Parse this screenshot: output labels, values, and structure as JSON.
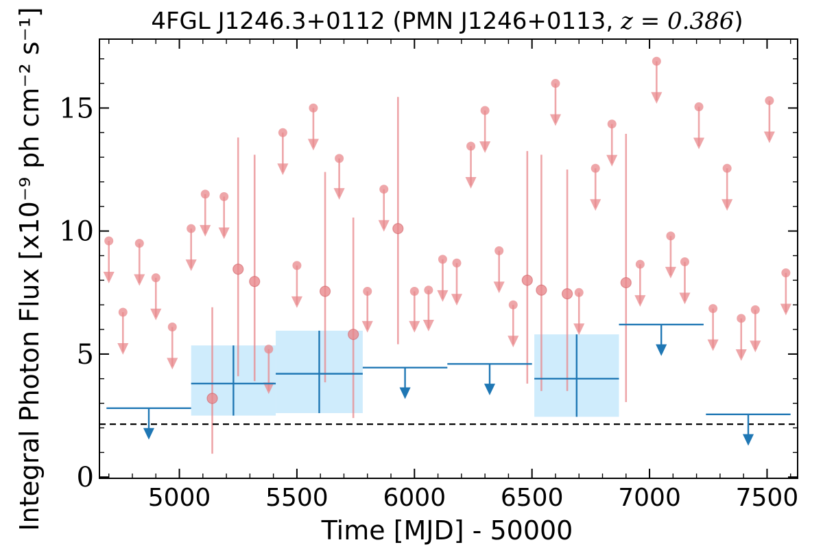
{
  "chart_data": {
    "type": "scatter",
    "title": "4FGL J1246.3+0112 (PMN J1246+0113, z = 0.386)",
    "title_parts": {
      "main": "4FGL J1246.3+0112 (PMN J1246+0113, ",
      "math": "z = 0.386",
      "close": ")"
    },
    "xlabel": "Time [MJD] - 50000",
    "ylabel": "Integral Photon Flux [x10⁻⁹ ph cm⁻² s⁻¹]",
    "xlim": [
      4660,
      7630
    ],
    "ylim": [
      -0.05,
      17.8
    ],
    "xticks": [
      5000,
      5500,
      6000,
      6500,
      7000,
      7500
    ],
    "xtick_labels": [
      "5000",
      "5500",
      "6000",
      "6500",
      "7000",
      "7500"
    ],
    "yticks": [
      0,
      5,
      10,
      15
    ],
    "ytick_labels": [
      "0",
      "5",
      "10",
      "15"
    ],
    "grid": false,
    "legend": "none",
    "reference_line": {
      "y": 2.15,
      "style": "dashed",
      "color": "#000000"
    },
    "colors": {
      "fine": "#e8888c",
      "coarse": "#1f77b4",
      "band": "#bfe6fb"
    },
    "series": [
      {
        "kind": "fine-upper-limits",
        "points": [
          {
            "x": 4700,
            "y": 9.6,
            "y_end": 8.0
          },
          {
            "x": 4760,
            "y": 6.7,
            "y_end": 5.1
          },
          {
            "x": 4830,
            "y": 9.5,
            "y_end": 7.9
          },
          {
            "x": 4900,
            "y": 8.1,
            "y_end": 6.5
          },
          {
            "x": 4970,
            "y": 6.1,
            "y_end": 4.5
          },
          {
            "x": 5050,
            "y": 10.1,
            "y_end": 8.5
          },
          {
            "x": 5110,
            "y": 11.5,
            "y_end": 9.9
          },
          {
            "x": 5190,
            "y": 11.4,
            "y_end": 9.8
          },
          {
            "x": 5380,
            "y": 5.2,
            "y_end": 3.5
          },
          {
            "x": 5440,
            "y": 14.0,
            "y_end": 12.4
          },
          {
            "x": 5500,
            "y": 8.6,
            "y_end": 7.0
          },
          {
            "x": 5570,
            "y": 15.0,
            "y_end": 13.4
          },
          {
            "x": 5680,
            "y": 12.95,
            "y_end": 11.4
          },
          {
            "x": 5800,
            "y": 7.55,
            "y_end": 6.0
          },
          {
            "x": 5870,
            "y": 11.7,
            "y_end": 10.1
          },
          {
            "x": 6000,
            "y": 7.55,
            "y_end": 6.0
          },
          {
            "x": 6060,
            "y": 7.6,
            "y_end": 6.05
          },
          {
            "x": 6120,
            "y": 8.85,
            "y_end": 7.25
          },
          {
            "x": 6180,
            "y": 8.7,
            "y_end": 7.1
          },
          {
            "x": 6240,
            "y": 13.45,
            "y_end": 11.85
          },
          {
            "x": 6300,
            "y": 14.9,
            "y_end": 13.3
          },
          {
            "x": 6360,
            "y": 9.2,
            "y_end": 7.6
          },
          {
            "x": 6420,
            "y": 7.0,
            "y_end": 5.4
          },
          {
            "x": 6600,
            "y": 16.0,
            "y_end": 14.4
          },
          {
            "x": 6700,
            "y": 7.5,
            "y_end": 5.9
          },
          {
            "x": 6770,
            "y": 12.55,
            "y_end": 10.95
          },
          {
            "x": 6840,
            "y": 14.35,
            "y_end": 12.75
          },
          {
            "x": 6960,
            "y": 8.65,
            "y_end": 7.05
          },
          {
            "x": 7030,
            "y": 16.9,
            "y_end": 15.3
          },
          {
            "x": 7090,
            "y": 9.8,
            "y_end": 8.2
          },
          {
            "x": 7150,
            "y": 8.75,
            "y_end": 7.15
          },
          {
            "x": 7210,
            "y": 15.05,
            "y_end": 13.45
          },
          {
            "x": 7270,
            "y": 6.85,
            "y_end": 5.25
          },
          {
            "x": 7330,
            "y": 12.55,
            "y_end": 10.95
          },
          {
            "x": 7390,
            "y": 6.45,
            "y_end": 4.85
          },
          {
            "x": 7450,
            "y": 6.8,
            "y_end": 5.2
          },
          {
            "x": 7510,
            "y": 15.3,
            "y_end": 13.7
          },
          {
            "x": 7580,
            "y": 8.3,
            "y_end": 6.7
          }
        ]
      },
      {
        "kind": "fine-detections",
        "points": [
          {
            "x": 5140,
            "y": 3.2,
            "y_low": 0.95,
            "y_high": 6.9
          },
          {
            "x": 5250,
            "y": 8.45,
            "y_low": 4.1,
            "y_high": 13.8
          },
          {
            "x": 5320,
            "y": 7.95,
            "y_low": 3.9,
            "y_high": 13.1
          },
          {
            "x": 5620,
            "y": 7.55,
            "y_low": 3.85,
            "y_high": 12.4
          },
          {
            "x": 5740,
            "y": 5.8,
            "y_low": 2.4,
            "y_high": 10.55
          },
          {
            "x": 5930,
            "y": 10.1,
            "y_low": 5.4,
            "y_high": 15.45
          },
          {
            "x": 6480,
            "y": 8.0,
            "y_low": 3.8,
            "y_high": 13.25
          },
          {
            "x": 6540,
            "y": 7.6,
            "y_low": 3.5,
            "y_high": 13.1
          },
          {
            "x": 6650,
            "y": 7.45,
            "y_low": 3.5,
            "y_high": 12.5
          },
          {
            "x": 6900,
            "y": 7.9,
            "y_low": 3.05,
            "y_high": 13.95
          }
        ]
      },
      {
        "kind": "coarse-upper-limits",
        "points": [
          {
            "x0": 4690,
            "x1": 5050,
            "x": 4870,
            "y": 2.8,
            "y_end": 1.65
          },
          {
            "x0": 5780,
            "x1": 6140,
            "x": 5960,
            "y": 4.45,
            "y_end": 3.3
          },
          {
            "x0": 6140,
            "x1": 6500,
            "x": 6320,
            "y": 4.6,
            "y_end": 3.45
          },
          {
            "x0": 6870,
            "x1": 7230,
            "x": 7050,
            "y": 6.2,
            "y_end": 5.05
          },
          {
            "x0": 7240,
            "x1": 7600,
            "x": 7420,
            "y": 2.55,
            "y_end": 1.4
          }
        ]
      },
      {
        "kind": "coarse-detections",
        "points": [
          {
            "x0": 5050,
            "x1": 5410,
            "x": 5230,
            "y": 3.8,
            "y_low": 2.5,
            "y_high": 5.35
          },
          {
            "x0": 5410,
            "x1": 5780,
            "x": 5595,
            "y": 4.2,
            "y_low": 2.6,
            "y_high": 5.95
          },
          {
            "x0": 6510,
            "x1": 6870,
            "x": 6690,
            "y": 4.0,
            "y_low": 2.45,
            "y_high": 5.8
          }
        ]
      }
    ]
  }
}
